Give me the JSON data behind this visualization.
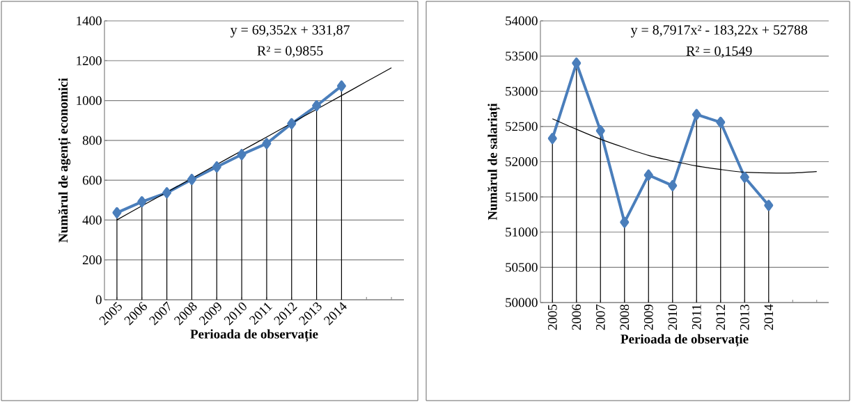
{
  "chart_data": [
    {
      "type": "line",
      "xlabel": "Perioada de observație",
      "ylabel": "Numărul de agenți economici",
      "categories": [
        "2005",
        "2006",
        "2007",
        "2008",
        "2009",
        "2010",
        "2011",
        "2012",
        "2013",
        "2014",
        null,
        null
      ],
      "series": [
        {
          "color": "#4a7ebb",
          "marker": "diamond",
          "values": [
            437,
            492,
            537,
            604,
            667,
            729,
            784,
            884,
            974,
            1073,
            null,
            null
          ],
          "errors": [
            [
              0,
              437
            ],
            [
              0,
              492
            ],
            [
              0,
              537
            ],
            [
              0,
              604
            ],
            [
              0,
              667
            ],
            [
              0,
              729
            ],
            [
              0,
              784
            ],
            [
              0,
              884
            ],
            [
              0,
              974
            ],
            [
              0,
              1073
            ],
            null,
            null
          ]
        },
        {
          "color": "#000000",
          "marker": "none",
          "values": [
            401,
            471,
            540,
            609,
            679,
            748,
            817,
            887,
            956,
            1025,
            1095,
            1164
          ]
        }
      ],
      "ylim": [
        0,
        1400
      ],
      "yticks": [
        0,
        200,
        400,
        600,
        800,
        1000,
        1200,
        1400
      ],
      "grid": "y",
      "annotations": [
        "y = 69,352x + 331,87",
        "R² = 0,9855"
      ]
    },
    {
      "type": "line",
      "xlabel": "Perioada de observație",
      "ylabel": "Numărul de salariați",
      "categories": [
        "2005",
        "2006",
        "2007",
        "2008",
        "2009",
        "2010",
        "2011",
        "2012",
        "2013",
        "2014",
        null,
        null
      ],
      "series": [
        {
          "color": "#4a7ebb",
          "marker": "diamond",
          "values": [
            52330,
            53400,
            52440,
            51140,
            51810,
            51660,
            52670,
            52560,
            51780,
            51380,
            null,
            null
          ],
          "errors": [
            [
              50000,
              52330
            ],
            [
              50000,
              53400
            ],
            [
              50000,
              52440
            ],
            [
              50000,
              51140
            ],
            [
              50000,
              51810
            ],
            [
              50000,
              51660
            ],
            [
              50000,
              52670
            ],
            [
              50000,
              52560
            ],
            [
              50000,
              51780
            ],
            [
              50000,
              51380
            ],
            null,
            null
          ]
        },
        {
          "color": "#000000",
          "marker": "none",
          "values": [
            52610,
            52460,
            52320,
            52200,
            52090,
            52010,
            51940,
            51890,
            51850,
            51840,
            51840,
            51860
          ]
        }
      ],
      "ylim": [
        50000,
        54000
      ],
      "yticks": [
        50000,
        50500,
        51000,
        51500,
        52000,
        52500,
        53000,
        53500,
        54000
      ],
      "grid": "y",
      "annotations": [
        "y = 8,7917x² - 183,22x + 52788",
        "R² = 0,1549"
      ]
    }
  ]
}
